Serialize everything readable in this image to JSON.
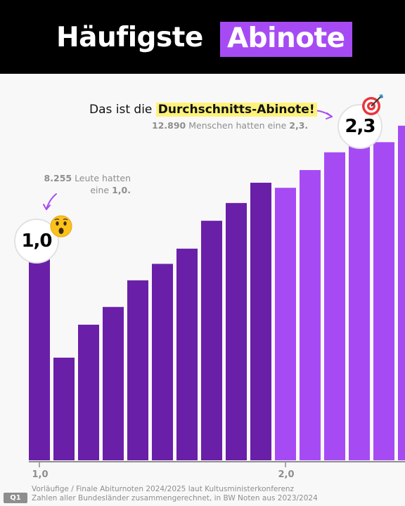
{
  "header": {
    "title_plain": "Häufigste",
    "title_highlight": "Abinote"
  },
  "annotations": {
    "main_prefix": "Das ist die ",
    "main_highlight": "Durchschnitts-Abinote!",
    "sub_count": "12.890",
    "sub_text": " Menschen hatten eine ",
    "sub_grade": "2,3.",
    "left_count": "8.255",
    "left_text": " Leute hatten eine ",
    "left_grade": "1,0."
  },
  "badges": {
    "left": "1,0",
    "right": "2,3",
    "left_emoji": "surprised-face",
    "right_emoji": "direct-hit-target"
  },
  "footer": {
    "tag": "Q1",
    "line1": "Vorläufige / Finale Abiturnoten 2024/2025 laut Kultusministerkonferenz",
    "line2": "Zahlen aller Bundesländer zusammengerechnet, in BW Noten aus 2023/2024"
  },
  "colors": {
    "header_bg": "#000000",
    "highlight": "#a64bf4",
    "bar_dark": "#6a1fa8",
    "bar_light": "#a64bf4",
    "plot_bg": "#f9f8f8",
    "marker_yellow": "#fff27a"
  },
  "chart_data": {
    "type": "bar",
    "categories": [
      "1,0",
      "1,1",
      "1,2",
      "1,3",
      "1,4",
      "1,5",
      "1,6",
      "1,7",
      "1,8",
      "1,9",
      "2,0",
      "2,1",
      "2,2",
      "2,3",
      "2,4",
      "2,5"
    ],
    "values": [
      8255,
      4050,
      5350,
      6050,
      7100,
      7750,
      8350,
      9450,
      10150,
      10950,
      10750,
      11450,
      12150,
      12890,
      12550,
      13200
    ],
    "ylim": [
      0,
      14000
    ],
    "x_tick_labels": [
      "1,0",
      "2,0"
    ],
    "highlight_from": "2,0",
    "annotated": [
      {
        "category": "1,0",
        "value": 8255
      },
      {
        "category": "2,3",
        "value": 12890
      }
    ],
    "grid": false,
    "legend": "none"
  }
}
